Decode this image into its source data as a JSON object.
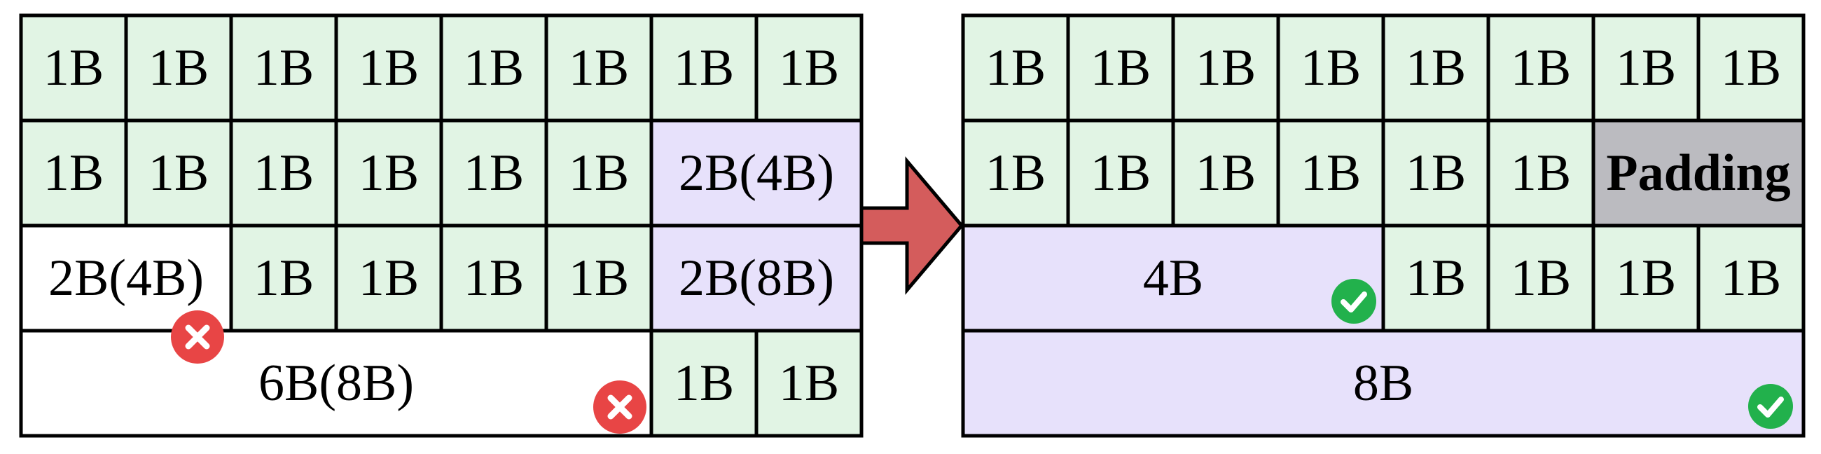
{
  "colors": {
    "green": "#e1f4e4",
    "purple": "#e7e1fb",
    "gray": "#bbbbc0",
    "white": "#ffffff",
    "border": "#000000",
    "arrow": "#d45c5c",
    "error": "#e84545",
    "success": "#22b14c"
  },
  "left_grid": {
    "row1": [
      "1B",
      "1B",
      "1B",
      "1B",
      "1B",
      "1B",
      "1B",
      "1B"
    ],
    "row2": [
      "1B",
      "1B",
      "1B",
      "1B",
      "1B",
      "1B",
      "2B(4B)"
    ],
    "row3": [
      "2B(4B)",
      "1B",
      "1B",
      "1B",
      "1B",
      "2B(8B)"
    ],
    "row4": [
      "6B(8B)",
      "1B",
      "1B"
    ]
  },
  "right_grid": {
    "row1": [
      "1B",
      "1B",
      "1B",
      "1B",
      "1B",
      "1B",
      "1B",
      "1B"
    ],
    "row2": [
      "1B",
      "1B",
      "1B",
      "1B",
      "1B",
      "1B",
      "Padding"
    ],
    "row3": [
      "4B",
      "1B",
      "1B",
      "1B",
      "1B"
    ],
    "row4": [
      "8B"
    ]
  },
  "icons": {
    "arrow": "right-arrow-icon",
    "error": "x-circle-icon",
    "success": "check-circle-icon"
  }
}
